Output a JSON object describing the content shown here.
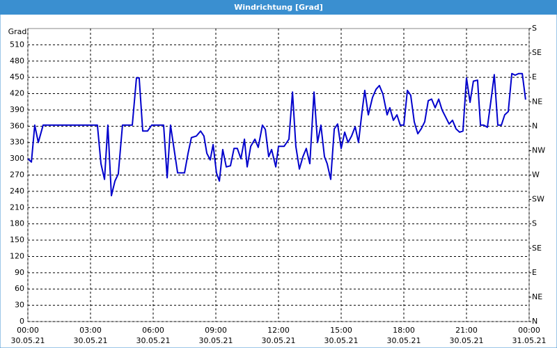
{
  "chart_data": {
    "type": "line",
    "title": "Windrichtung [Grad]",
    "y_label": "Grad",
    "x": [
      0,
      0.17,
      0.33,
      0.5,
      0.73,
      3.33,
      3.5,
      3.67,
      3.83,
      4,
      4.17,
      4.33,
      4.53,
      5,
      5.2,
      5.33,
      5.5,
      5.73,
      5.93,
      6.5,
      6.67,
      6.83,
      7.17,
      7.5,
      7.67,
      7.83,
      8.07,
      8.27,
      8.43,
      8.57,
      8.73,
      8.87,
      9.03,
      9.17,
      9.33,
      9.5,
      9.7,
      9.87,
      10.03,
      10.2,
      10.37,
      10.5,
      10.67,
      10.87,
      11.03,
      11.23,
      11.37,
      11.53,
      11.67,
      11.87,
      12,
      12.27,
      12.5,
      12.67,
      12.83,
      13,
      13.17,
      13.33,
      13.5,
      13.7,
      13.87,
      14.03,
      14.2,
      14.33,
      14.5,
      14.67,
      14.83,
      15,
      15.17,
      15.33,
      15.5,
      15.67,
      15.83,
      16,
      16.13,
      16.3,
      16.5,
      16.67,
      16.83,
      17,
      17.2,
      17.33,
      17.5,
      17.67,
      17.83,
      18,
      18.17,
      18.33,
      18.5,
      18.67,
      18.83,
      19,
      19.17,
      19.33,
      19.5,
      19.67,
      19.83,
      20,
      20.17,
      20.33,
      20.5,
      20.67,
      20.83,
      21,
      21.17,
      21.33,
      21.53,
      21.67,
      21.83,
      22,
      22.17,
      22.33,
      22.5,
      22.67,
      22.83,
      23,
      23.17,
      23.33,
      23.5,
      23.67,
      23.83
    ],
    "series": [
      {
        "name": "Windrichtung",
        "color": "#0000cc",
        "values": [
          300,
          294,
          362,
          330,
          362,
          362,
          291,
          262,
          362,
          232,
          259,
          272,
          362,
          362,
          449,
          449,
          351,
          351,
          362,
          362,
          265,
          362,
          274,
          274,
          310,
          339,
          342,
          351,
          342,
          310,
          298,
          326,
          274,
          259,
          317,
          285,
          287,
          319,
          319,
          300,
          336,
          285,
          323,
          336,
          321,
          362,
          354,
          304,
          317,
          285,
          323,
          323,
          336,
          423,
          323,
          281,
          304,
          319,
          291,
          423,
          330,
          362,
          304,
          291,
          262,
          355,
          364,
          319,
          349,
          330,
          342,
          359,
          330,
          387,
          426,
          381,
          413,
          428,
          435,
          419,
          381,
          394,
          371,
          381,
          362,
          362,
          426,
          417,
          368,
          346,
          355,
          368,
          407,
          410,
          394,
          410,
          390,
          377,
          364,
          371,
          355,
          349,
          351,
          449,
          404,
          443,
          445,
          362,
          362,
          358,
          407,
          455,
          362,
          362,
          381,
          387,
          457,
          454,
          457,
          457,
          409
        ]
      }
    ],
    "xlim": [
      0,
      24
    ],
    "xticks": [
      {
        "value": 0,
        "label": [
          "00:00",
          "30.05.21"
        ]
      },
      {
        "value": 3,
        "label": [
          "03:00",
          "30.05.21"
        ]
      },
      {
        "value": 6,
        "label": [
          "06:00",
          "30.05.21"
        ]
      },
      {
        "value": 9,
        "label": [
          "09:00",
          "30.05.21"
        ]
      },
      {
        "value": 12,
        "label": [
          "12:00",
          "30.05.21"
        ]
      },
      {
        "value": 15,
        "label": [
          "15:00",
          "30.05.21"
        ]
      },
      {
        "value": 18,
        "label": [
          "18:00",
          "30.05.21"
        ]
      },
      {
        "value": 21,
        "label": [
          "21:00",
          "30.05.21"
        ]
      },
      {
        "value": 24,
        "label": [
          "00:00",
          "31.05.21"
        ]
      }
    ],
    "ylim": [
      0,
      540
    ],
    "yticks": [
      0,
      30,
      60,
      90,
      120,
      150,
      180,
      210,
      240,
      270,
      300,
      330,
      360,
      390,
      420,
      450,
      480,
      510
    ],
    "y2lim": [
      0,
      540
    ],
    "y2ticks": [
      {
        "value": 0,
        "label": "N"
      },
      {
        "value": 45,
        "label": "NE"
      },
      {
        "value": 90,
        "label": "E"
      },
      {
        "value": 135,
        "label": "SE"
      },
      {
        "value": 180,
        "label": "S"
      },
      {
        "value": 225,
        "label": "SW"
      },
      {
        "value": 270,
        "label": "W"
      },
      {
        "value": 315,
        "label": "NW"
      },
      {
        "value": 360,
        "label": "N"
      },
      {
        "value": 405,
        "label": "NE"
      },
      {
        "value": 450,
        "label": "E"
      },
      {
        "value": 495,
        "label": "SE"
      },
      {
        "value": 540,
        "label": "S"
      }
    ],
    "grid": true
  }
}
